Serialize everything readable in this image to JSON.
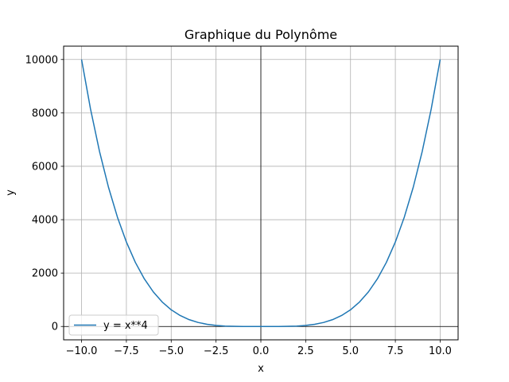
{
  "chart_data": {
    "type": "line",
    "title": "Graphique du Polynôme",
    "xlabel": "x",
    "ylabel": "y",
    "xlim": [
      -11,
      11
    ],
    "ylim": [
      -500,
      10500
    ],
    "xticks": [
      -10.0,
      -7.5,
      -5.0,
      -2.5,
      0.0,
      2.5,
      5.0,
      7.5,
      10.0
    ],
    "xtick_labels": [
      "−10.0",
      "−7.5",
      "−5.0",
      "−2.5",
      "0.0",
      "2.5",
      "5.0",
      "7.5",
      "10.0"
    ],
    "yticks": [
      0,
      2000,
      4000,
      6000,
      8000,
      10000
    ],
    "ytick_labels": [
      "0",
      "2000",
      "4000",
      "6000",
      "8000",
      "10000"
    ],
    "grid": true,
    "zero_lines": true,
    "legend_position": "lower-left",
    "series": [
      {
        "name": "y = x**4",
        "color": "#1f77b4",
        "x": [
          -10,
          -9.5,
          -9,
          -8.5,
          -8,
          -7.5,
          -7,
          -6.5,
          -6,
          -5.5,
          -5,
          -4.5,
          -4,
          -3.5,
          -3,
          -2.5,
          -2,
          -1.5,
          -1,
          -0.5,
          0,
          0.5,
          1,
          1.5,
          2,
          2.5,
          3,
          3.5,
          4,
          4.5,
          5,
          5.5,
          6,
          6.5,
          7,
          7.5,
          8,
          8.5,
          9,
          9.5,
          10
        ],
        "y": [
          10000,
          8145.06,
          6561,
          5220.06,
          4096,
          3164.06,
          2401,
          1785.06,
          1296,
          915.06,
          625,
          410.06,
          256,
          150.06,
          81,
          39.06,
          16,
          5.06,
          1,
          0.06,
          0,
          0.06,
          1,
          5.06,
          16,
          39.06,
          81,
          150.06,
          256,
          410.06,
          625,
          915.06,
          1296,
          1785.06,
          2401,
          3164.06,
          4096,
          5220.06,
          6561,
          8145.06,
          10000
        ]
      }
    ]
  }
}
